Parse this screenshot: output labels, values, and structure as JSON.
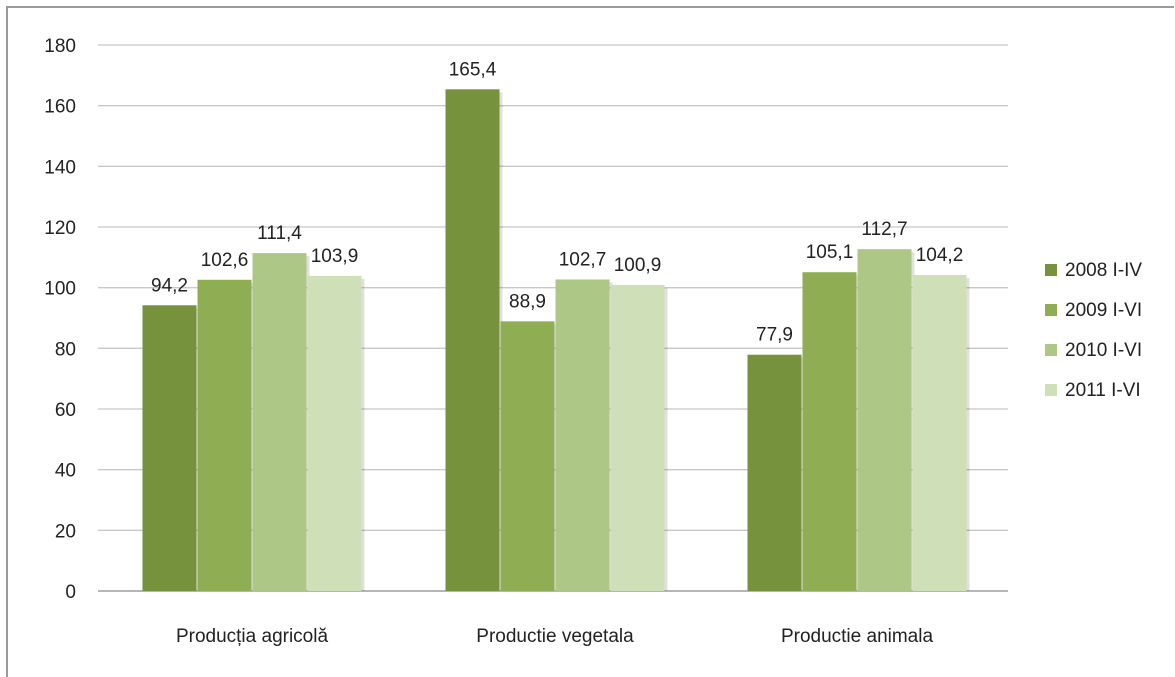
{
  "chart_data": {
    "type": "bar",
    "title": "",
    "xlabel": "",
    "ylabel": "",
    "ylim": [
      0,
      180
    ],
    "yticks": [
      "0",
      "20",
      "40",
      "60",
      "80",
      "100",
      "120",
      "140",
      "160",
      "180"
    ],
    "grid": true,
    "legend_position": "right",
    "categories": [
      "Producția agricolă",
      "Productie vegetala",
      "Productie animala"
    ],
    "series": [
      {
        "name": "2008 I-IV",
        "color": "#76923c",
        "values": [
          94.2,
          165.4,
          77.9
        ],
        "labels": [
          "94,2",
          "165,4",
          "77,9"
        ]
      },
      {
        "name": "2009 I-VI",
        "color": "#8fad53",
        "values": [
          102.6,
          88.9,
          105.1
        ],
        "labels": [
          "102,6",
          "88,9",
          "105,1"
        ]
      },
      {
        "name": "2010 I-VI",
        "color": "#adc786",
        "values": [
          111.4,
          102.7,
          112.7
        ],
        "labels": [
          "111,4",
          "102,7",
          "112,7"
        ]
      },
      {
        "name": "2011 I-VI",
        "color": "#cfdfb8",
        "values": [
          103.9,
          100.9,
          104.2
        ],
        "labels": [
          "103,9",
          "100,9",
          "104,2"
        ]
      }
    ]
  }
}
